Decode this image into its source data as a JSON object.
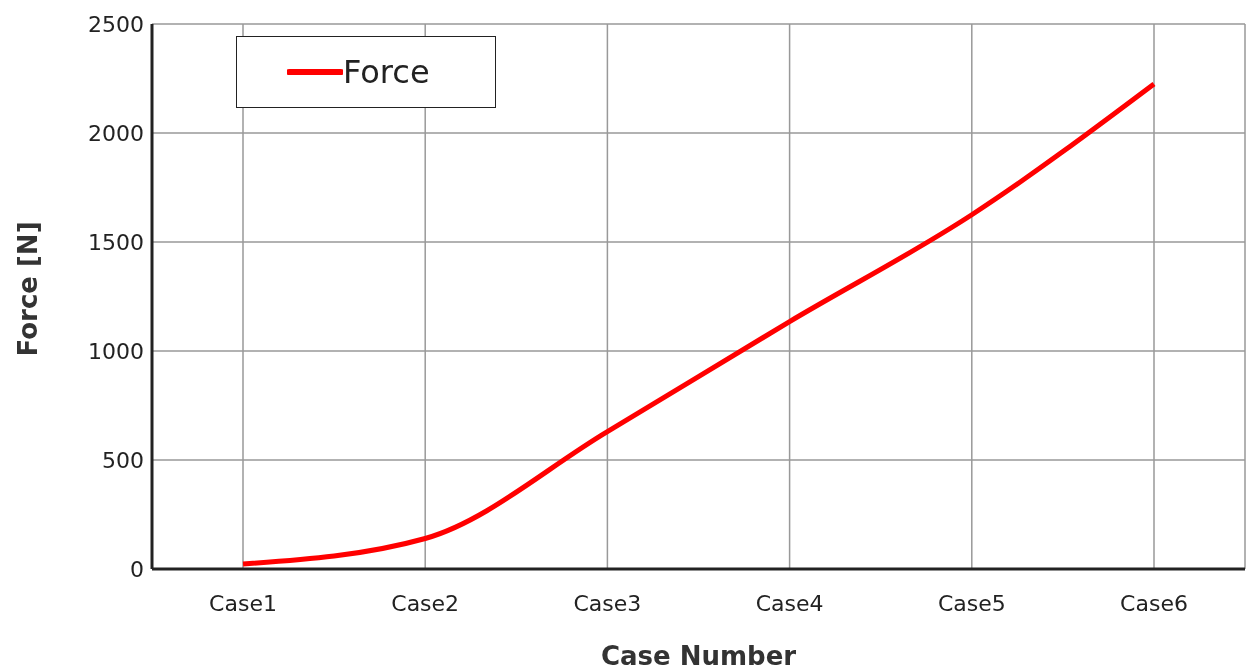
{
  "chart_data": {
    "type": "line",
    "xlabel": "Case Number",
    "ylabel": "Force [N]",
    "categories": [
      "Case1",
      "Case2",
      "Case3",
      "Case4",
      "Case5",
      "Case6"
    ],
    "series": [
      {
        "name": "Force",
        "color": "#ff0000",
        "values": [
          23,
          140,
          630,
          1135,
          1625,
          2225
        ]
      }
    ],
    "ylim": [
      0,
      2500
    ],
    "yticks": [
      0,
      500,
      1000,
      1500,
      2000,
      2500
    ],
    "grid": true,
    "legend": "top left",
    "marker": "none",
    "line_style": "solid"
  }
}
